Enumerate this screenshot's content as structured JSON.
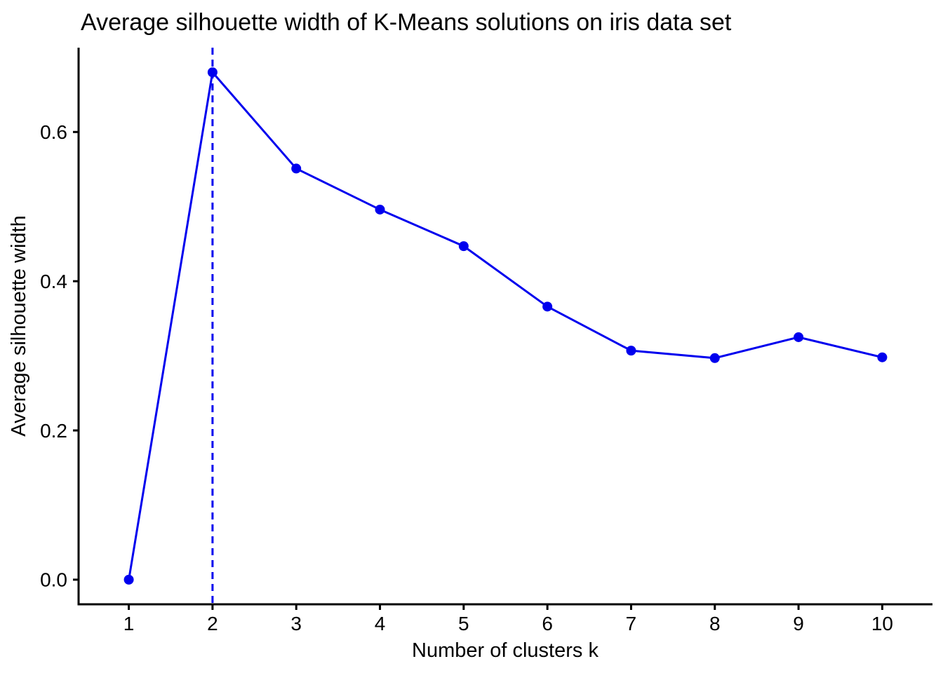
{
  "chart_data": {
    "type": "line",
    "title": "Average silhouette width of K-Means solutions on iris data set",
    "xlabel": "Number of clusters k",
    "ylabel": "Average silhouette width",
    "x": [
      1,
      2,
      3,
      4,
      5,
      6,
      7,
      8,
      9,
      10
    ],
    "series": [
      {
        "name": "Average silhouette width",
        "values": [
          0.0,
          0.68,
          0.551,
          0.496,
          0.447,
          0.366,
          0.307,
          0.297,
          0.325,
          0.298
        ]
      }
    ],
    "xlim": [
      0.4,
      10.6
    ],
    "ylim": [
      -0.033,
      0.713
    ],
    "x_ticks": [
      1,
      2,
      3,
      4,
      5,
      6,
      7,
      8,
      9,
      10
    ],
    "x_tick_labels": [
      "1",
      "2",
      "3",
      "4",
      "5",
      "6",
      "7",
      "8",
      "9",
      "10"
    ],
    "y_ticks": [
      0.0,
      0.2,
      0.4,
      0.6
    ],
    "y_tick_labels": [
      "0.0",
      "0.2",
      "0.4",
      "0.6"
    ],
    "grid": false,
    "legend": "none",
    "annotations": [
      {
        "kind": "vline",
        "x": 2,
        "style": "dashed"
      }
    ],
    "colors": {
      "line": "#0000EE",
      "point": "#0000EE",
      "vline": "#0000EE",
      "axis": "#000000",
      "text": "#000000",
      "background": "#FFFFFF"
    },
    "marker": "circle",
    "point_radius": 7,
    "line_width": 3
  }
}
